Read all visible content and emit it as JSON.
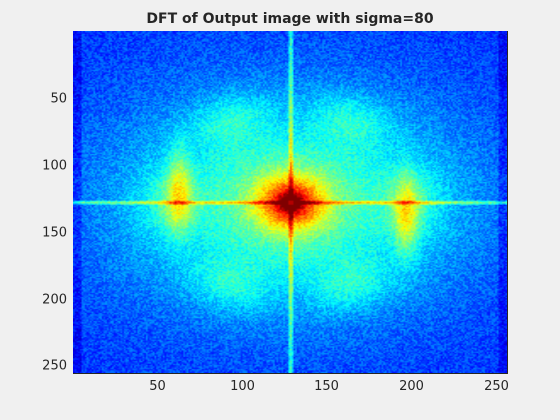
{
  "chart_data": {
    "type": "heatmap",
    "title": "DFT of Output image with sigma=80",
    "xlabel": "",
    "ylabel": "",
    "image_size": [
      256,
      256
    ],
    "xlim": [
      0.5,
      256.5
    ],
    "ylim": [
      0.5,
      256.5
    ],
    "y_direction": "reverse",
    "colormap": "jet",
    "x_ticks": [
      50,
      100,
      150,
      200,
      250
    ],
    "y_ticks": [
      50,
      100,
      150,
      200,
      250
    ],
    "grid": false,
    "features": {
      "center_peak": [
        129,
        129
      ],
      "cross_lines": {
        "vertical_x": 129,
        "horizontal_y": 129
      },
      "side_lobes": [
        {
          "x": 63,
          "y": 120
        },
        {
          "x": 197,
          "y": 140
        }
      ],
      "ring_radius": 72
    }
  }
}
